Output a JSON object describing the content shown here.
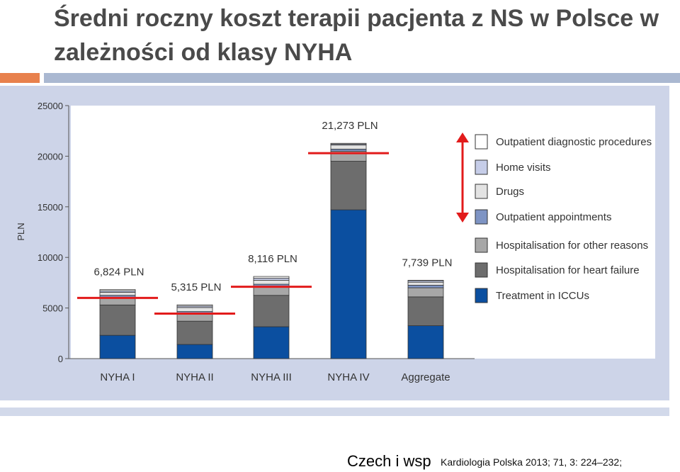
{
  "header": {
    "title": "Średni roczny koszt terapii pacjenta z NS w Polsce w zależności od klasy NYHA"
  },
  "footer": {
    "author": "Czech i wsp",
    "citation": "Kardiologia Polska 2013; 71, 3: 224–232;"
  },
  "colors": {
    "treatment_iccu": "#0b4fa0",
    "hosp_heart_failure": "#6d6d6d",
    "hosp_other": "#a7a7a7",
    "outpatient_appointments": "#7e94c4",
    "drugs": "#e3e3e3",
    "home_visits": "#c6cde8",
    "outpatient_diagnostic": "#ffffff",
    "red_marker": "#e21b1b"
  },
  "chart_data": {
    "type": "bar",
    "stacked": true,
    "ylabel": "PLN",
    "ylim": [
      0,
      25000
    ],
    "yticks": [
      0,
      5000,
      10000,
      15000,
      20000,
      25000
    ],
    "categories": [
      "NYHA I",
      "NYHA II",
      "NYHA III",
      "NYHA IV",
      "Aggregate"
    ],
    "totals": [
      "6,824 PLN",
      "5,315 PLN",
      "8,116 PLN",
      "21,273 PLN",
      "7,739 PLN"
    ],
    "series": [
      {
        "name": "Treatment in ICCUs",
        "key": "treatment_iccu",
        "values": [
          2300,
          1400,
          3150,
          14700,
          3250
        ]
      },
      {
        "name": "Hospitalisation for heart failure",
        "key": "hosp_heart_failure",
        "values": [
          3000,
          2300,
          3100,
          4800,
          2850
        ]
      },
      {
        "name": "Hospitalisation for other reasons",
        "key": "hosp_other",
        "values": [
          700,
          700,
          800,
          1000,
          900
        ]
      },
      {
        "name": "Outpatient appointments",
        "key": "outpatient_appointments",
        "values": [
          250,
          250,
          300,
          200,
          250
        ]
      },
      {
        "name": "Drugs",
        "key": "drugs",
        "values": [
          300,
          400,
          400,
          400,
          300
        ]
      },
      {
        "name": "Home visits",
        "key": "home_visits",
        "values": [
          150,
          150,
          200,
          100,
          150
        ]
      },
      {
        "name": "Outpatient diagnostic procedures",
        "key": "outpatient_diagnostic",
        "values": [
          124,
          115,
          166,
          73,
          39
        ]
      }
    ],
    "legend_order": [
      "outpatient_diagnostic",
      "home_visits",
      "drugs",
      "outpatient_appointments",
      "hosp_other",
      "hosp_heart_failure",
      "treatment_iccu"
    ],
    "legend_labels": [
      "Outpatient diagnostic procedures",
      "Home visits",
      "Drugs",
      "Outpatient appointments",
      "Hospitalisation for other reasons",
      "Hospitalisation for heart failure",
      "Treatment in ICCUs"
    ],
    "annotations": {
      "red_lines": [
        6000,
        4450,
        7100,
        20300
      ],
      "legend_position": "right",
      "grid": false
    }
  }
}
